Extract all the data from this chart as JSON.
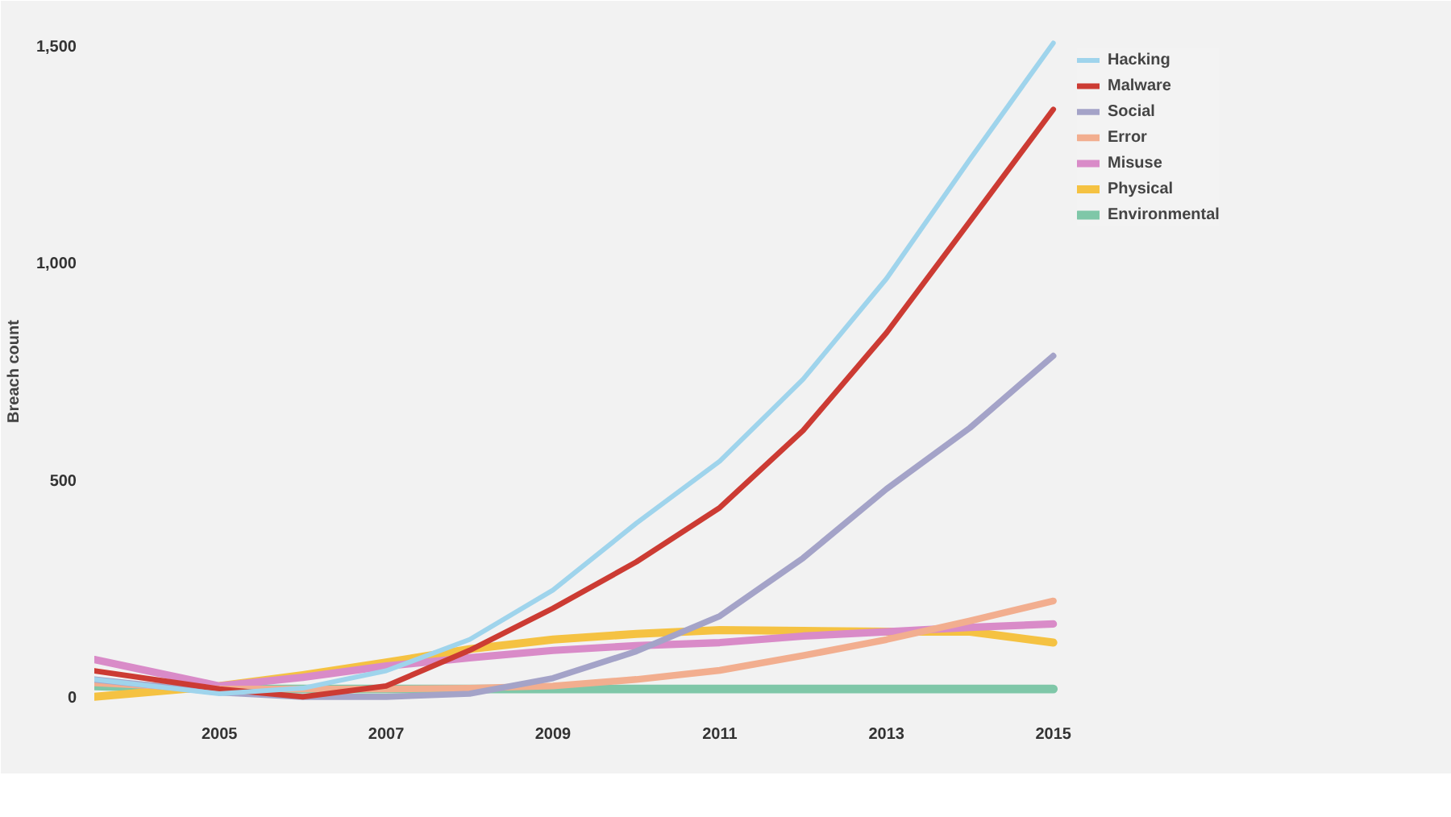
{
  "chart_data": {
    "type": "line",
    "ylabel": "Breach count",
    "x": [
      2003.5,
      2005,
      2006,
      2007,
      2008,
      2009,
      2010,
      2011,
      2012,
      2013,
      2014,
      2015
    ],
    "series": [
      {
        "name": "Hacking",
        "color": "#9fd4ec",
        "values": [
          40,
          7,
          20,
          60,
          132,
          246,
          400,
          543,
          732,
          964,
          1239,
          1507
        ]
      },
      {
        "name": "Malware",
        "color": "#cc3b33",
        "values": [
          60,
          18,
          0,
          25,
          107,
          204,
          311,
          436,
          614,
          839,
          1096,
          1354
        ]
      },
      {
        "name": "Social",
        "color": "#a4a3c8",
        "values": [
          40,
          10,
          0,
          0,
          7,
          43,
          105,
          186,
          320,
          479,
          620,
          786
        ]
      },
      {
        "name": "Error",
        "color": "#f2ae8f",
        "values": [
          32,
          18,
          18,
          18,
          20,
          25,
          40,
          61,
          95,
          132,
          175,
          221
        ]
      },
      {
        "name": "Misuse",
        "color": "#d98bc8",
        "values": [
          86,
          25,
          45,
          71,
          90,
          107,
          118,
          125,
          140,
          150,
          160,
          168
        ]
      },
      {
        "name": "Physical",
        "color": "#f5c242",
        "values": [
          0,
          25,
          50,
          79,
          110,
          132,
          145,
          154,
          152,
          150,
          150,
          125
        ]
      },
      {
        "name": "Environmental",
        "color": "#7fc7a8",
        "values": [
          25,
          18,
          18,
          18,
          18,
          18,
          18,
          18,
          18,
          18,
          18,
          18
        ]
      }
    ],
    "xlim": [
      2003.5,
      2015.1
    ],
    "ylim": [
      -30,
      1530
    ],
    "xticks": [
      2005,
      2007,
      2009,
      2011,
      2013,
      2015
    ],
    "yticks": [
      0,
      {
        "value": 500,
        "label": "500"
      },
      {
        "value": 1000,
        "label": "1,000"
      },
      {
        "value": 1500,
        "label": "1,500"
      }
    ],
    "grid": false,
    "legend": "top right",
    "line_style": "solid"
  }
}
